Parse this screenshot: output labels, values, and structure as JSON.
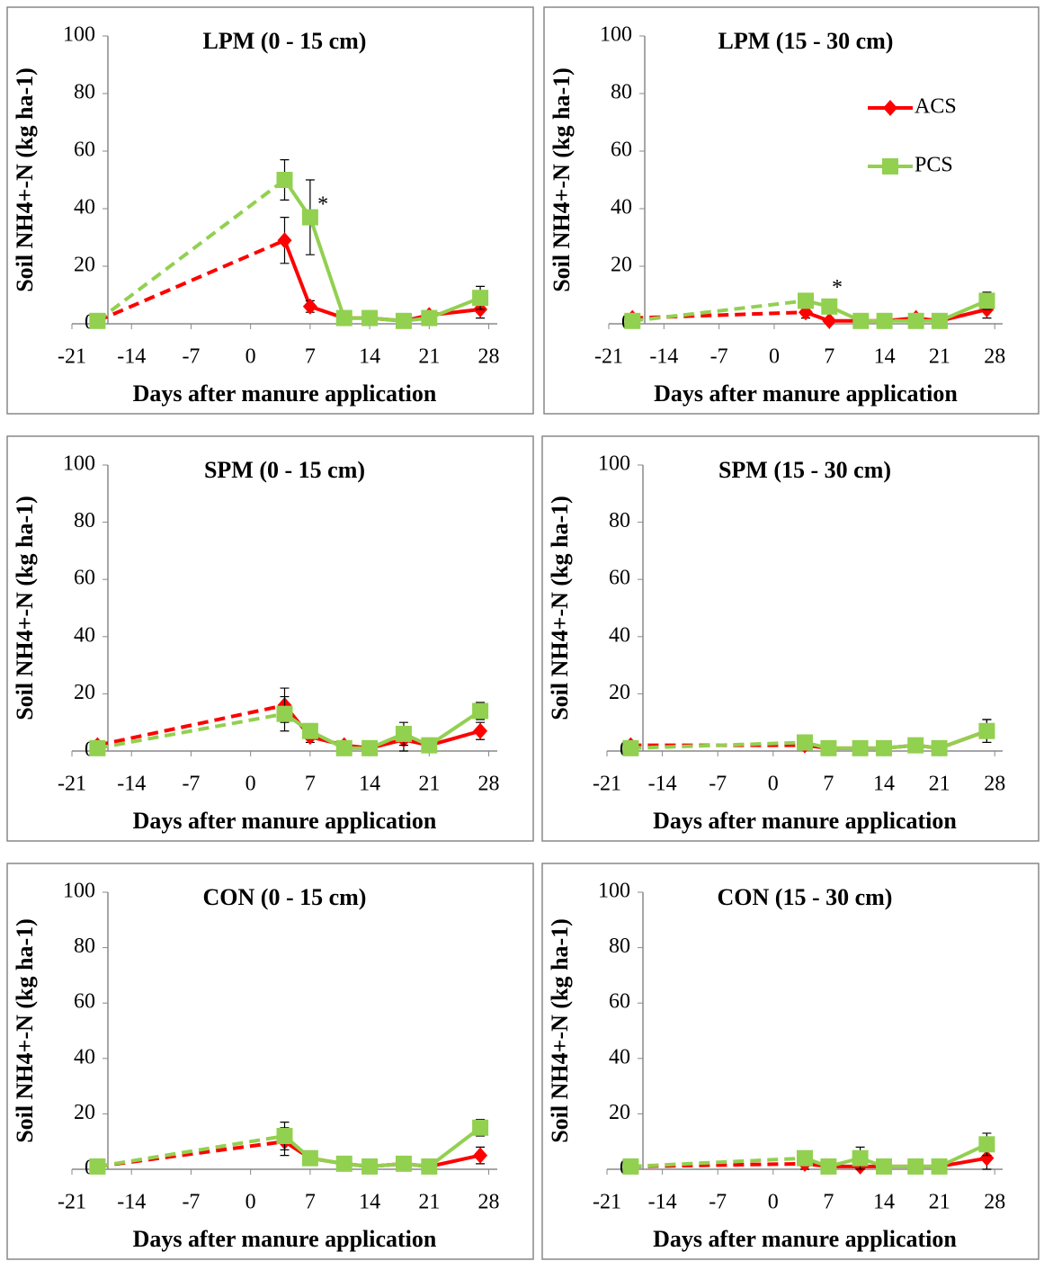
{
  "chart_data": [
    {
      "type": "line",
      "title": "LPM (0 - 15 cm)",
      "x_label": "Days after manure application",
      "y_label": "Soil NH4+-N (kg ha-1)",
      "x": [
        -18,
        4,
        7,
        11,
        14,
        18,
        21,
        27
      ],
      "xlim": [
        -21,
        29
      ],
      "xticks": [
        -21,
        -14,
        -7,
        0,
        7,
        14,
        21,
        28
      ],
      "ylim": [
        0,
        100
      ],
      "yticks": [
        0,
        20,
        40,
        60,
        80,
        100
      ],
      "dashed_first_segment": true,
      "series": [
        {
          "name": "ACS",
          "color": "#ff0000",
          "marker": "diamond",
          "values": [
            1,
            29,
            6,
            2,
            2,
            1,
            3,
            5
          ],
          "errors": [
            0,
            8,
            2,
            1,
            1,
            1,
            1,
            3
          ]
        },
        {
          "name": "PCS",
          "color": "#92d050",
          "marker": "square",
          "values": [
            1,
            50,
            37,
            2,
            2,
            1,
            2,
            9
          ],
          "errors": [
            0,
            7,
            13,
            1,
            1,
            1,
            1,
            4
          ]
        }
      ],
      "annotations": [
        {
          "text": "*",
          "x": 8.5,
          "y": 41
        }
      ]
    },
    {
      "type": "line",
      "title": "LPM (15 - 30 cm)",
      "x_label": "Days after manure application",
      "y_label": "Soil NH4+-N (kg ha-1)",
      "x": [
        -18,
        4,
        7,
        11,
        14,
        18,
        21,
        27
      ],
      "xlim": [
        -21,
        29
      ],
      "xticks": [
        -21,
        -14,
        -7,
        0,
        7,
        14,
        21,
        28
      ],
      "ylim": [
        0,
        100
      ],
      "yticks": [
        0,
        20,
        40,
        60,
        80,
        100
      ],
      "dashed_first_segment": true,
      "legend": "upper right",
      "series": [
        {
          "name": "ACS",
          "color": "#ff0000",
          "marker": "diamond",
          "values": [
            2,
            4,
            1,
            1,
            1,
            2,
            1,
            5
          ],
          "errors": [
            0,
            2,
            1,
            1,
            1,
            1,
            1,
            3
          ]
        },
        {
          "name": "PCS",
          "color": "#92d050",
          "marker": "square",
          "values": [
            1,
            8,
            6,
            1,
            1,
            1,
            1,
            8
          ],
          "errors": [
            0,
            2,
            1,
            1,
            1,
            1,
            1,
            3
          ]
        }
      ],
      "annotations": [
        {
          "text": "*",
          "x": 8,
          "y": 12
        }
      ]
    },
    {
      "type": "line",
      "title": "SPM (0 - 15 cm)",
      "x_label": "Days after manure application",
      "y_label": "Soil NH4+-N (kg ha-1)",
      "x": [
        -18,
        4,
        7,
        11,
        14,
        18,
        21,
        27
      ],
      "xlim": [
        -21,
        29
      ],
      "xticks": [
        -21,
        -14,
        -7,
        0,
        7,
        14,
        21,
        28
      ],
      "ylim": [
        0,
        100
      ],
      "yticks": [
        0,
        20,
        40,
        60,
        80,
        100
      ],
      "dashed_first_segment": true,
      "series": [
        {
          "name": "ACS",
          "color": "#ff0000",
          "marker": "diamond",
          "values": [
            2,
            16,
            5,
            2,
            1,
            4,
            2,
            7
          ],
          "errors": [
            0,
            6,
            2,
            1,
            1,
            4,
            1,
            3
          ]
        },
        {
          "name": "PCS",
          "color": "#92d050",
          "marker": "square",
          "values": [
            1,
            13,
            7,
            1,
            1,
            6,
            2,
            14
          ],
          "errors": [
            0,
            6,
            2,
            1,
            1,
            4,
            1,
            3
          ]
        }
      ]
    },
    {
      "type": "line",
      "title": "SPM (15 - 30 cm)",
      "x_label": "Days after manure application",
      "y_label": "Soil NH4+-N (kg ha-1)",
      "x": [
        -18,
        4,
        7,
        11,
        14,
        18,
        21,
        27
      ],
      "xlim": [
        -21,
        29
      ],
      "xticks": [
        -21,
        -14,
        -7,
        0,
        7,
        14,
        21,
        28
      ],
      "ylim": [
        0,
        100
      ],
      "yticks": [
        0,
        20,
        40,
        60,
        80,
        100
      ],
      "dashed_first_segment": true,
      "series": [
        {
          "name": "ACS",
          "color": "#ff0000",
          "marker": "diamond",
          "values": [
            2,
            2,
            1,
            1,
            1,
            2,
            1,
            7
          ],
          "errors": [
            0,
            1,
            1,
            1,
            1,
            1,
            1,
            4
          ]
        },
        {
          "name": "PCS",
          "color": "#92d050",
          "marker": "square",
          "values": [
            1,
            3,
            1,
            1,
            1,
            2,
            1,
            7
          ],
          "errors": [
            0,
            1,
            1,
            1,
            1,
            1,
            1,
            4
          ]
        }
      ]
    },
    {
      "type": "line",
      "title": "CON (0 - 15 cm)",
      "x_label": "Days after manure application",
      "y_label": "Soil NH4+-N (kg ha-1)",
      "x": [
        -18,
        4,
        7,
        11,
        14,
        18,
        21,
        27
      ],
      "xlim": [
        -21,
        29
      ],
      "xticks": [
        -21,
        -14,
        -7,
        0,
        7,
        14,
        21,
        28
      ],
      "ylim": [
        0,
        100
      ],
      "yticks": [
        0,
        20,
        40,
        60,
        80,
        100
      ],
      "dashed_first_segment": true,
      "series": [
        {
          "name": "ACS",
          "color": "#ff0000",
          "marker": "diamond",
          "values": [
            1,
            10,
            4,
            2,
            1,
            2,
            1,
            5
          ],
          "errors": [
            0,
            5,
            1,
            1,
            1,
            1,
            1,
            3
          ]
        },
        {
          "name": "PCS",
          "color": "#92d050",
          "marker": "square",
          "values": [
            1,
            12,
            4,
            2,
            1,
            2,
            1,
            15
          ],
          "errors": [
            0,
            5,
            1,
            1,
            1,
            1,
            1,
            3
          ]
        }
      ]
    },
    {
      "type": "line",
      "title": "CON (15 - 30 cm)",
      "x_label": "Days after manure application",
      "y_label": "Soil NH4+-N (kg ha-1)",
      "x": [
        -18,
        4,
        7,
        11,
        14,
        18,
        21,
        27
      ],
      "xlim": [
        -21,
        29
      ],
      "xticks": [
        -21,
        -14,
        -7,
        0,
        7,
        14,
        21,
        28
      ],
      "ylim": [
        0,
        100
      ],
      "yticks": [
        0,
        20,
        40,
        60,
        80,
        100
      ],
      "dashed_first_segment": true,
      "series": [
        {
          "name": "ACS",
          "color": "#ff0000",
          "marker": "diamond",
          "values": [
            1,
            2,
            1,
            1,
            1,
            1,
            1,
            4
          ],
          "errors": [
            0,
            2,
            1,
            1,
            1,
            1,
            1,
            4
          ]
        },
        {
          "name": "PCS",
          "color": "#92d050",
          "marker": "square",
          "values": [
            1,
            4,
            1,
            4,
            1,
            1,
            1,
            9
          ],
          "errors": [
            0,
            2,
            1,
            4,
            1,
            1,
            1,
            4
          ]
        }
      ]
    }
  ]
}
